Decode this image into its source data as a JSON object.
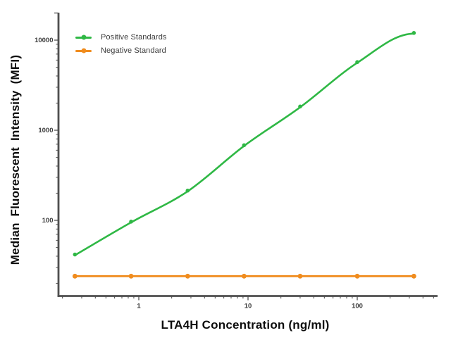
{
  "chart_data": {
    "type": "line",
    "title": "",
    "xlabel": "LTA4H Concentration (ng/ml)",
    "ylabel": "Median Fluorescent Intensity  (MFI)",
    "x_scale": "log",
    "y_scale": "log",
    "xlim": [
      0.18,
      540
    ],
    "ylim": [
      14.5,
      20000
    ],
    "x_ticks": [
      1,
      10,
      100
    ],
    "y_ticks": [
      100,
      1000,
      10000
    ],
    "y_axis_end_tick": 20000,
    "grid": false,
    "legend_position": "top-left-inside",
    "axis_color": "#4f4f4f",
    "tick_label_color": "#3d3d3d",
    "background_color": "#ffffff",
    "series": [
      {
        "name": "Positive Standards",
        "color": "#2fb845",
        "marker": "dot",
        "curve_style": "smooth-sigmoid",
        "x": [
          0.26,
          0.85,
          2.8,
          9.2,
          30,
          100,
          330
        ],
        "y": [
          41,
          95,
          210,
          670,
          1800,
          5600,
          11800
        ]
      },
      {
        "name": "Negative Standard",
        "color": "#f08c1e",
        "marker": "dot",
        "curve_style": "flat-line",
        "x": [
          0.26,
          0.85,
          2.8,
          9.2,
          30,
          100,
          330
        ],
        "y": [
          24,
          24,
          24,
          24,
          24,
          24,
          24
        ]
      }
    ]
  }
}
